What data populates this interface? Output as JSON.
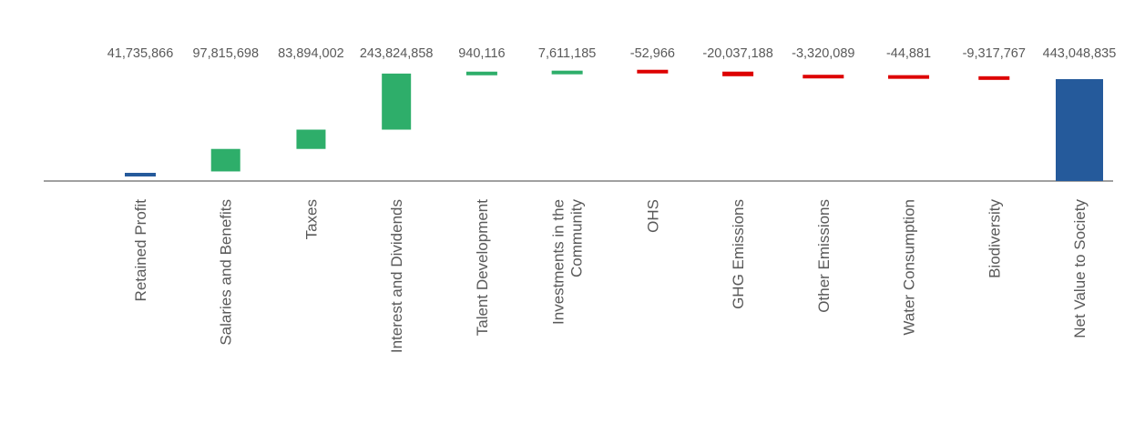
{
  "chart_data": {
    "type": "bar",
    "subtype": "waterfall",
    "categories": [
      "Retained Profit",
      "Salaries and Benefits",
      "Taxes",
      "Interest and Dividends",
      "Talent Development",
      "Investments in the Community",
      "OHS",
      "GHG Emissions",
      "Other Emissions",
      "Water Consumption",
      "Biodiversity",
      "Net Value to Society"
    ],
    "values": [
      41735866,
      97815698,
      83894002,
      243824858,
      940116,
      7611185,
      -52966,
      -20037188,
      -3320089,
      -44881,
      -9317767,
      443048835
    ],
    "value_labels": [
      "41,735,866",
      "97,815,698",
      "83,894,002",
      "243,824,858",
      "940,116",
      "7,611,185",
      "-52,966",
      "-20,037,188",
      "-3,320,089",
      "-44,881",
      "-9,317,767",
      "443,048,835"
    ],
    "bar_kind": [
      "total",
      "delta",
      "delta",
      "delta",
      "delta",
      "delta",
      "delta",
      "delta",
      "delta",
      "delta",
      "delta",
      "total"
    ],
    "colors": {
      "total": "#255a9b",
      "positive": "#2eae6a",
      "negative": "#dd0000",
      "axis": "#a0a0a0",
      "label": "#595959"
    },
    "title": "",
    "xlabel": "",
    "ylabel": "",
    "legend": "none",
    "grid": false
  }
}
